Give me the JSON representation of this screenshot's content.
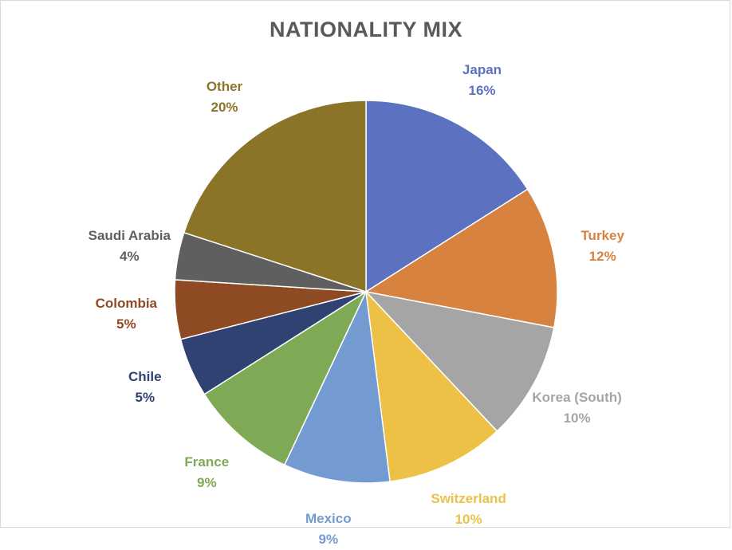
{
  "chart_data": {
    "type": "pie",
    "title": "NATIONALITY MIX",
    "slices": [
      {
        "label": "Japan",
        "pct_label": "16%",
        "value": 16,
        "color": "#5b72c0"
      },
      {
        "label": "Turkey",
        "pct_label": "12%",
        "value": 12,
        "color": "#d8823f"
      },
      {
        "label": "Korea (South)",
        "pct_label": "10%",
        "value": 10,
        "color": "#a5a5a5"
      },
      {
        "label": "Switzerland",
        "pct_label": "10%",
        "value": 10,
        "color": "#ecc145"
      },
      {
        "label": "Mexico",
        "pct_label": "9%",
        "value": 9,
        "color": "#739bd2"
      },
      {
        "label": "France",
        "pct_label": "9%",
        "value": 9,
        "color": "#7faa55"
      },
      {
        "label": "Chile",
        "pct_label": "5%",
        "value": 5,
        "color": "#2f4272"
      },
      {
        "label": "Colombia",
        "pct_label": "5%",
        "value": 5,
        "color": "#8e4a22"
      },
      {
        "label": "Saudi Arabia",
        "pct_label": "4%",
        "value": 4,
        "color": "#5f5f5f"
      },
      {
        "label": "Other",
        "pct_label": "20%",
        "value": 20,
        "color": "#8b7428"
      }
    ],
    "label_colors": [
      "#5b72c0",
      "#d8823f",
      "#a5a5a5",
      "#ecc145",
      "#739bd2",
      "#7faa55",
      "#2f4272",
      "#8e4a22",
      "#5f5f5f",
      "#8b7428"
    ]
  }
}
